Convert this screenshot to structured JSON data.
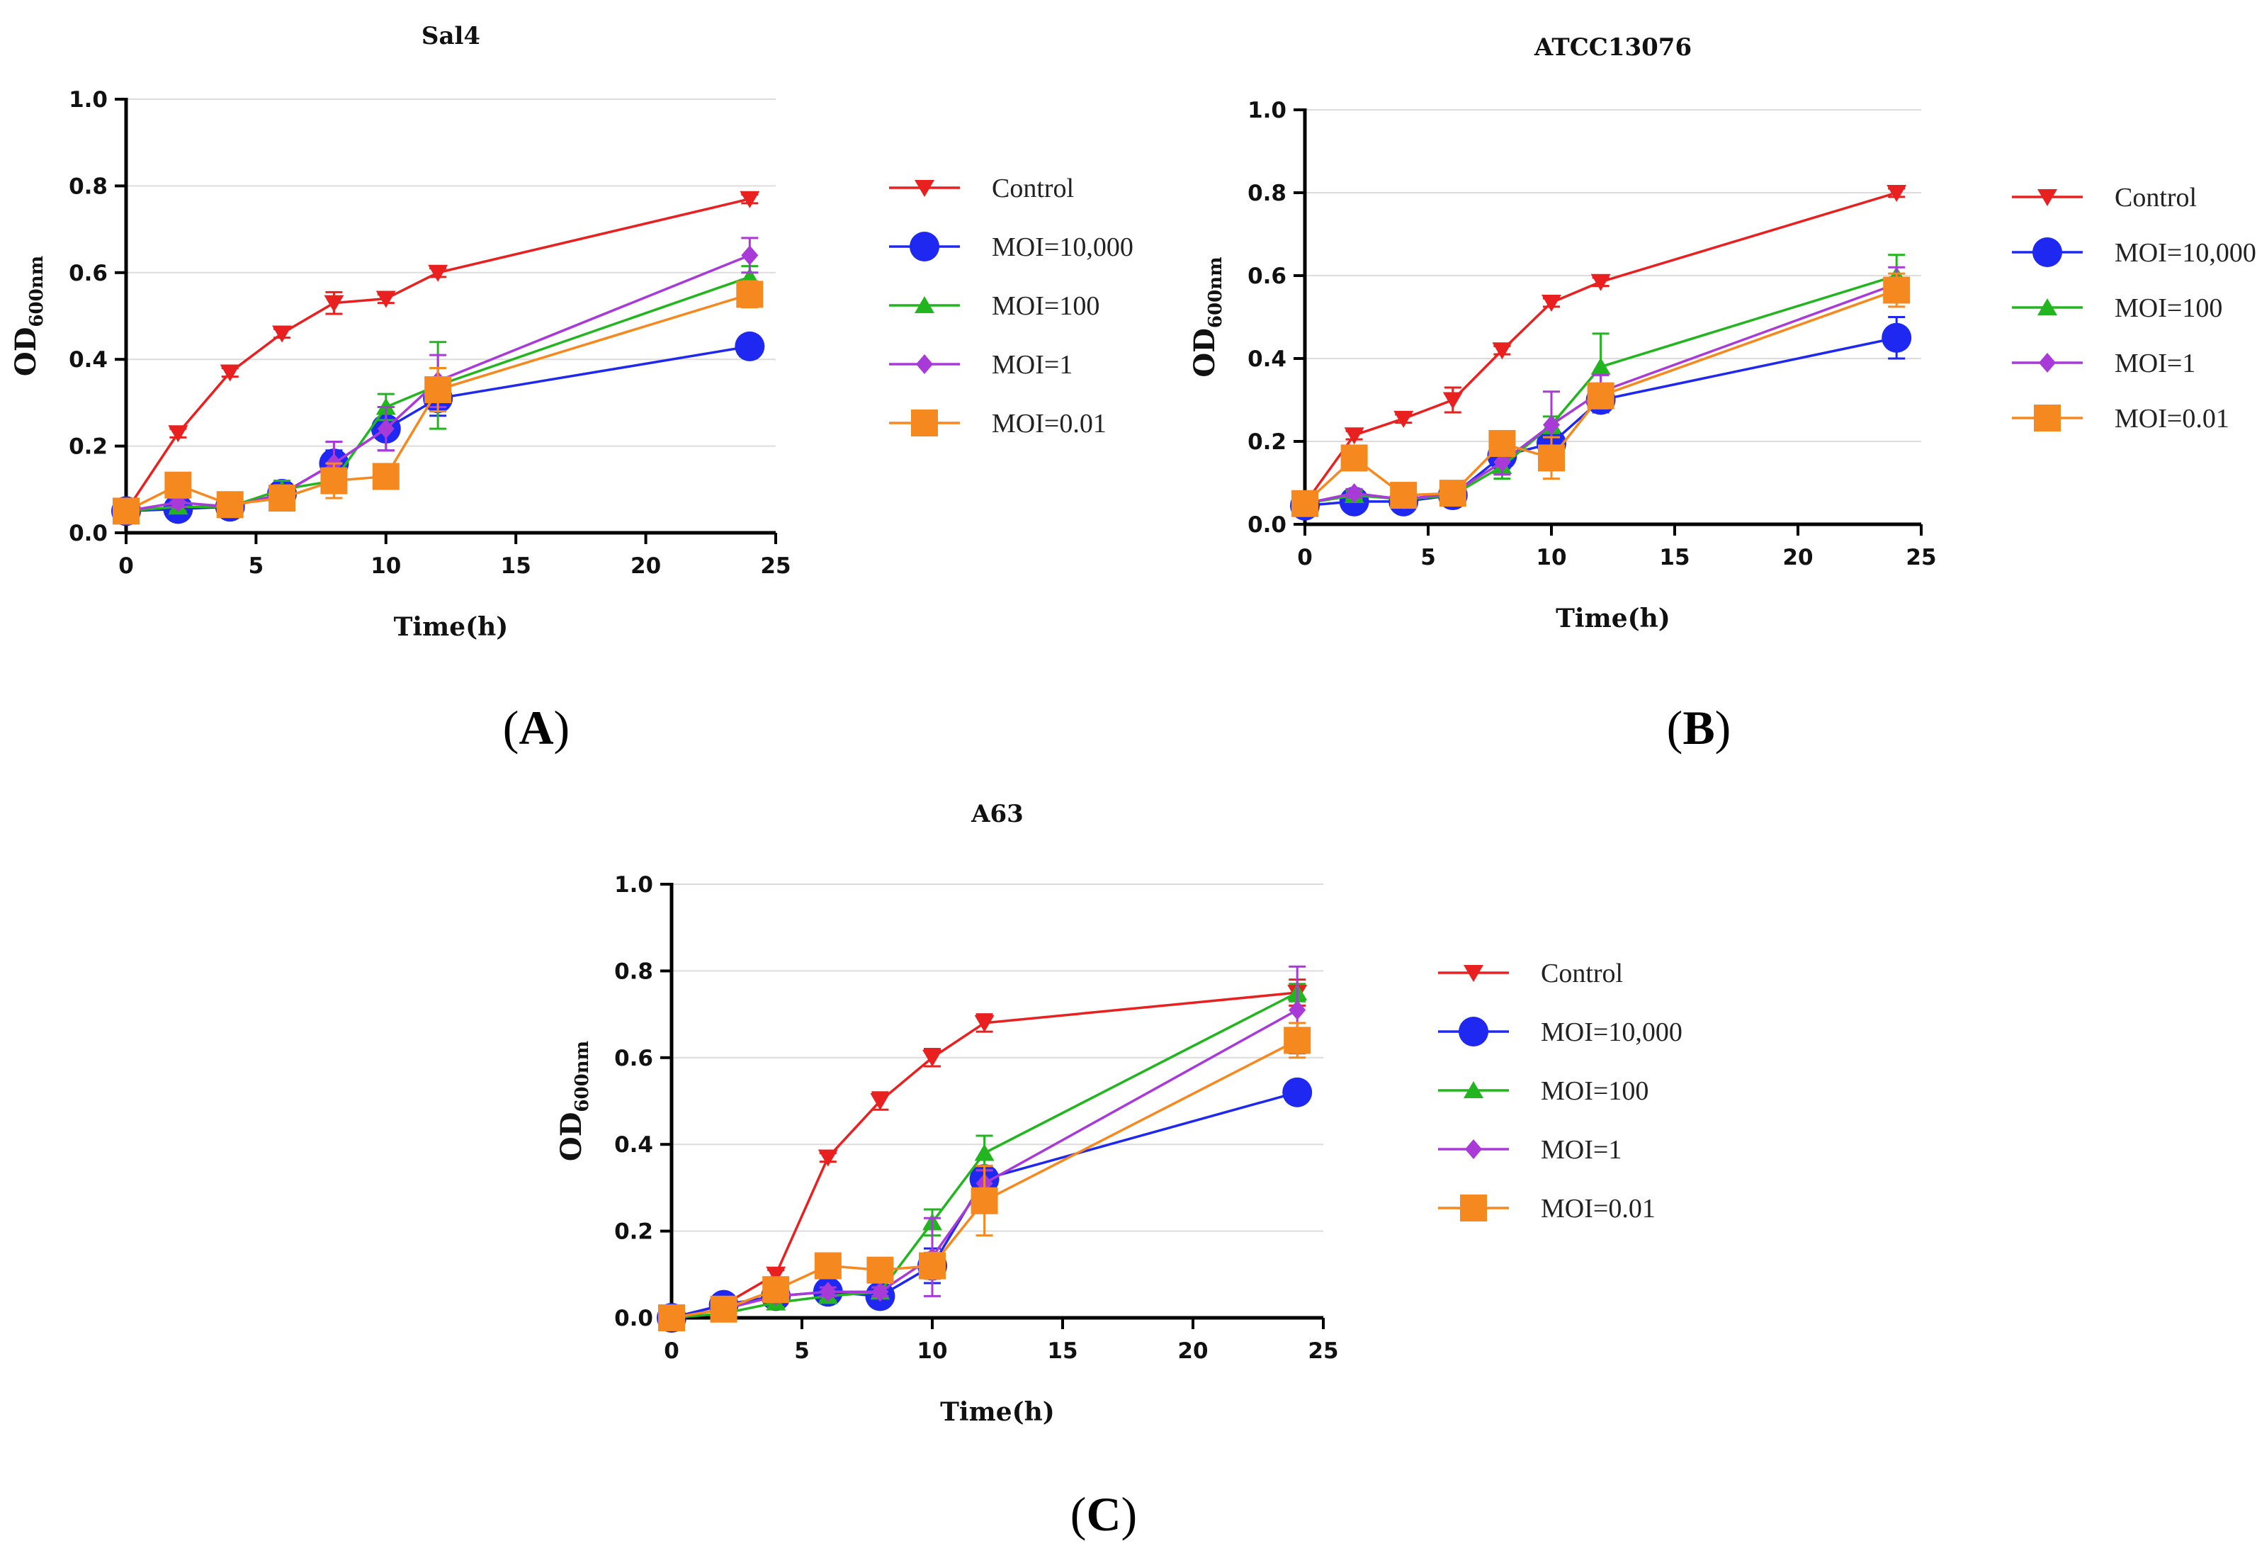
{
  "colors": {
    "Control": "#e8201f",
    "MOI=10,000": "#1f28f0",
    "MOI=100": "#22b51f",
    "MOI=1": "#a83ad8",
    "MOI=0.01": "#f5891f"
  },
  "markers": {
    "Control": "triangle-down",
    "MOI=10,000": "circle",
    "MOI=100": "triangle-up",
    "MOI=1": "diamond",
    "MOI=0.01": "square"
  },
  "chart_data": [
    {
      "type": "line",
      "panel": "(A)",
      "title": "Sal4",
      "xlabel": "Time(h)",
      "ylabel": "OD",
      "ylabel_sub": "600nm",
      "xlim": [
        0,
        25
      ],
      "ylim": [
        0,
        1.0
      ],
      "xticks": [
        0,
        5,
        10,
        15,
        20,
        25
      ],
      "yticks": [
        "0.0",
        "0.2",
        "0.4",
        "0.6",
        "0.8",
        "1.0"
      ],
      "grid": "horizontal",
      "legend": "right",
      "x": [
        0,
        2,
        4,
        6,
        8,
        10,
        12,
        24
      ],
      "series": [
        {
          "name": "Control",
          "values": [
            0.05,
            0.23,
            0.37,
            0.46,
            0.53,
            0.54,
            0.6,
            0.77
          ],
          "errors": [
            0.005,
            0.01,
            0.01,
            0.01,
            0.025,
            0.01,
            0.01,
            0.01
          ]
        },
        {
          "name": "MOI=10,000",
          "values": [
            0.05,
            0.055,
            0.06,
            0.09,
            0.16,
            0.24,
            0.31,
            0.43
          ],
          "errors": [
            0.005,
            0.01,
            0.01,
            0.015,
            0.03,
            0.05,
            0.04,
            0.025
          ]
        },
        {
          "name": "MOI=100",
          "values": [
            0.05,
            0.06,
            0.06,
            0.1,
            0.12,
            0.29,
            0.34,
            0.59
          ],
          "errors": [
            0.005,
            0.01,
            0.01,
            0.02,
            0.02,
            0.03,
            0.1,
            0.025
          ]
        },
        {
          "name": "MOI=1",
          "values": [
            0.05,
            0.07,
            0.06,
            0.09,
            0.16,
            0.24,
            0.35,
            0.64
          ],
          "errors": [
            0.005,
            0.01,
            0.01,
            0.02,
            0.05,
            0.05,
            0.06,
            0.04
          ]
        },
        {
          "name": "MOI=0.01",
          "values": [
            0.05,
            0.11,
            0.065,
            0.08,
            0.12,
            0.13,
            0.33,
            0.55
          ],
          "errors": [
            0.005,
            0.01,
            0.01,
            0.015,
            0.04,
            0.02,
            0.05,
            0.03
          ]
        }
      ]
    },
    {
      "type": "line",
      "panel": "(B)",
      "title": "ATCC13076",
      "xlabel": "Time(h)",
      "ylabel": "OD",
      "ylabel_sub": "600nm",
      "xlim": [
        0,
        25
      ],
      "ylim": [
        0,
        1.0
      ],
      "xticks": [
        0,
        5,
        10,
        15,
        20,
        25
      ],
      "yticks": [
        "0.0",
        "0.2",
        "0.4",
        "0.6",
        "0.8",
        "1.0"
      ],
      "grid": "horizontal",
      "legend": "right",
      "x": [
        0,
        2,
        4,
        6,
        8,
        10,
        12,
        24
      ],
      "series": [
        {
          "name": "Control",
          "values": [
            0.05,
            0.215,
            0.255,
            0.3,
            0.42,
            0.535,
            0.585,
            0.8
          ],
          "errors": [
            0.005,
            0.01,
            0.01,
            0.03,
            0.01,
            0.01,
            0.01,
            0.01
          ]
        },
        {
          "name": "MOI=10,000",
          "values": [
            0.045,
            0.055,
            0.055,
            0.07,
            0.165,
            0.195,
            0.3,
            0.45
          ],
          "errors": [
            0.005,
            0.01,
            0.01,
            0.01,
            0.03,
            0.03,
            0.03,
            0.05
          ]
        },
        {
          "name": "MOI=100",
          "values": [
            0.05,
            0.07,
            0.06,
            0.07,
            0.14,
            0.24,
            0.38,
            0.6
          ],
          "errors": [
            0.005,
            0.01,
            0.01,
            0.01,
            0.03,
            0.02,
            0.08,
            0.05
          ]
        },
        {
          "name": "MOI=1",
          "values": [
            0.05,
            0.075,
            0.06,
            0.075,
            0.15,
            0.24,
            0.32,
            0.58
          ],
          "errors": [
            0.005,
            0.01,
            0.01,
            0.01,
            0.03,
            0.08,
            0.04,
            0.04
          ]
        },
        {
          "name": "MOI=0.01",
          "values": [
            0.05,
            0.16,
            0.07,
            0.075,
            0.195,
            0.16,
            0.31,
            0.565
          ],
          "errors": [
            0.005,
            0.01,
            0.01,
            0.01,
            0.02,
            0.05,
            0.03,
            0.04
          ]
        }
      ]
    },
    {
      "type": "line",
      "panel": "(C)",
      "title": "A63",
      "xlabel": "Time(h)",
      "ylabel": "OD",
      "ylabel_sub": "600nm",
      "xlim": [
        0,
        25
      ],
      "ylim": [
        0,
        1.0
      ],
      "xticks": [
        0,
        5,
        10,
        15,
        20,
        25
      ],
      "yticks": [
        "0.0",
        "0.2",
        "0.4",
        "0.6",
        "0.8",
        "1.0"
      ],
      "grid": "horizontal",
      "legend": "right",
      "x": [
        0,
        2,
        4,
        6,
        8,
        10,
        12,
        24
      ],
      "series": [
        {
          "name": "Control",
          "values": [
            0.0,
            0.03,
            0.1,
            0.37,
            0.5,
            0.6,
            0.68,
            0.75
          ],
          "errors": [
            0.005,
            0.01,
            0.01,
            0.01,
            0.02,
            0.02,
            0.02,
            0.03
          ]
        },
        {
          "name": "MOI=10,000",
          "values": [
            0.0,
            0.03,
            0.05,
            0.06,
            0.05,
            0.12,
            0.32,
            0.52
          ],
          "errors": [
            0.005,
            0.01,
            0.01,
            0.01,
            0.01,
            0.04,
            0.03,
            0.02
          ]
        },
        {
          "name": "MOI=100",
          "values": [
            0.0,
            0.01,
            0.035,
            0.05,
            0.06,
            0.22,
            0.38,
            0.75
          ],
          "errors": [
            0.005,
            0.01,
            0.01,
            0.01,
            0.01,
            0.03,
            0.04,
            0.02
          ]
        },
        {
          "name": "MOI=1",
          "values": [
            0.0,
            0.02,
            0.05,
            0.06,
            0.06,
            0.14,
            0.31,
            0.71
          ],
          "errors": [
            0.005,
            0.01,
            0.01,
            0.01,
            0.01,
            0.09,
            0.03,
            0.1
          ]
        },
        {
          "name": "MOI=0.01",
          "values": [
            0.0,
            0.02,
            0.065,
            0.12,
            0.11,
            0.12,
            0.27,
            0.64
          ],
          "errors": [
            0.005,
            0.01,
            0.01,
            0.01,
            0.01,
            0.03,
            0.08,
            0.04
          ]
        }
      ]
    }
  ]
}
